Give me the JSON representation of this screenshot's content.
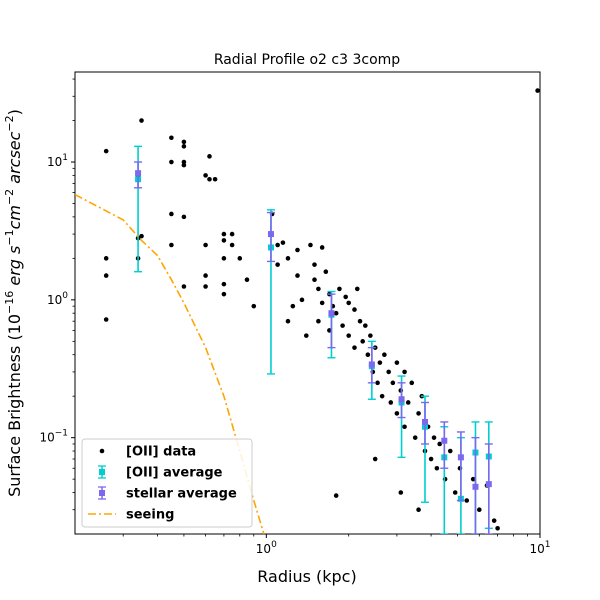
{
  "chart_data": {
    "type": "scatter",
    "title": "Radial Profile o2 c3 3comp",
    "xlabel": "Radius (kpc)",
    "ylabel_prefix": "Surface Brightness  (",
    "ylabel_unit_main": "10",
    "ylabel_unit_exp1": "−16",
    "ylabel_unit_mid": " erg s",
    "ylabel_unit_exp2": "−1",
    "ylabel_unit_cm": "cm",
    "ylabel_unit_exp3": "−2",
    "ylabel_unit_arc": " arcsec",
    "ylabel_unit_exp4": "−2",
    "ylabel_suffix": ")",
    "xscale": "log",
    "yscale": "log",
    "xlim": [
      0.2,
      10
    ],
    "ylim": [
      0.02,
      45
    ],
    "xticks": [
      {
        "value": 1,
        "base": "10",
        "exp": "0"
      },
      {
        "value": 10,
        "base": "10",
        "exp": "1"
      }
    ],
    "yticks": [
      {
        "value": 0.1,
        "base": "10",
        "exp": "−1"
      },
      {
        "value": 1,
        "base": "10",
        "exp": "0"
      },
      {
        "value": 10,
        "base": "10",
        "exp": "1"
      }
    ],
    "legend_position": "lower-left",
    "legend": [
      {
        "label": "[OII] data",
        "kind": "dot",
        "color": "#000000"
      },
      {
        "label": "[OII] average",
        "kind": "errbar",
        "color": "#00CED1"
      },
      {
        "label": "stellar average",
        "kind": "errbar",
        "color": "#7B68EE"
      },
      {
        "label": "seeing",
        "kind": "dashdot",
        "color": "#FFA500"
      }
    ],
    "series": [
      {
        "name": "[OII] data",
        "kind": "scatter",
        "color": "#000000",
        "points": [
          [
            0.26,
            12
          ],
          [
            0.26,
            2.0
          ],
          [
            0.26,
            1.5
          ],
          [
            0.26,
            0.72
          ],
          [
            0.34,
            7.8
          ],
          [
            0.34,
            2.8
          ],
          [
            0.34,
            2.0
          ],
          [
            0.35,
            20
          ],
          [
            0.35,
            2.9
          ],
          [
            0.45,
            15
          ],
          [
            0.45,
            10
          ],
          [
            0.45,
            4.2
          ],
          [
            0.45,
            2.5
          ],
          [
            0.5,
            13
          ],
          [
            0.5,
            10
          ],
          [
            0.5,
            9.5
          ],
          [
            0.5,
            14
          ],
          [
            0.5,
            4
          ],
          [
            0.5,
            1.25
          ],
          [
            0.6,
            8
          ],
          [
            0.6,
            2.5
          ],
          [
            0.6,
            1.5
          ],
          [
            0.6,
            1.25
          ],
          [
            0.62,
            11
          ],
          [
            0.62,
            7.5
          ],
          [
            0.65,
            7.5
          ],
          [
            0.7,
            3.0
          ],
          [
            0.7,
            2.7
          ],
          [
            0.7,
            2.0
          ],
          [
            0.7,
            1.3
          ],
          [
            0.7,
            1.1
          ],
          [
            0.75,
            3.0
          ],
          [
            0.75,
            2.5
          ],
          [
            0.8,
            2.0
          ],
          [
            0.85,
            1.4
          ],
          [
            0.9,
            0.9
          ],
          [
            1.05,
            4.2
          ],
          [
            1.1,
            2.5
          ],
          [
            1.1,
            1.8
          ],
          [
            1.15,
            2.6
          ],
          [
            1.2,
            2.0
          ],
          [
            1.2,
            0.7
          ],
          [
            1.25,
            0.9
          ],
          [
            1.3,
            2.3
          ],
          [
            1.3,
            1.5
          ],
          [
            1.35,
            1.0
          ],
          [
            1.4,
            0.55
          ],
          [
            1.45,
            2.5
          ],
          [
            1.5,
            1.8
          ],
          [
            1.5,
            1.4
          ],
          [
            1.55,
            1.2
          ],
          [
            1.55,
            0.7
          ],
          [
            1.6,
            2.4
          ],
          [
            1.6,
            0.95
          ],
          [
            1.65,
            1.6
          ],
          [
            1.7,
            1.1
          ],
          [
            1.7,
            0.6
          ],
          [
            1.75,
            0.9
          ],
          [
            1.8,
            0.8
          ],
          [
            1.85,
            1.2
          ],
          [
            1.9,
            0.65
          ],
          [
            1.95,
            1.05
          ],
          [
            2.0,
            0.95
          ],
          [
            2.0,
            0.55
          ],
          [
            2.1,
            0.85
          ],
          [
            2.1,
            0.45
          ],
          [
            2.15,
            1.2
          ],
          [
            2.2,
            0.7
          ],
          [
            2.25,
            0.5
          ],
          [
            2.3,
            0.65
          ],
          [
            2.35,
            0.4
          ],
          [
            2.4,
            0.55
          ],
          [
            2.45,
            0.3
          ],
          [
            2.5,
            0.45
          ],
          [
            2.55,
            0.25
          ],
          [
            2.6,
            0.35
          ],
          [
            2.65,
            0.2
          ],
          [
            2.7,
            0.4
          ],
          [
            2.8,
            0.3
          ],
          [
            2.85,
            0.18
          ],
          [
            2.9,
            0.25
          ],
          [
            3.0,
            0.35
          ],
          [
            3.0,
            0.15
          ],
          [
            3.1,
            0.22
          ],
          [
            3.2,
            0.3
          ],
          [
            3.2,
            0.12
          ],
          [
            3.3,
            0.18
          ],
          [
            3.4,
            0.25
          ],
          [
            3.5,
            0.1
          ],
          [
            3.6,
            0.15
          ],
          [
            3.7,
            0.2
          ],
          [
            3.8,
            0.08
          ],
          [
            3.9,
            0.12
          ],
          [
            4.0,
            0.07
          ],
          [
            4.1,
            0.1
          ],
          [
            4.2,
            0.06
          ],
          [
            4.3,
            0.09
          ],
          [
            4.5,
            0.05
          ],
          [
            4.7,
            0.08
          ],
          [
            4.9,
            0.04
          ],
          [
            5.1,
            0.06
          ],
          [
            5.4,
            0.035
          ],
          [
            5.7,
            0.05
          ],
          [
            6.0,
            0.03
          ],
          [
            6.4,
            0.045
          ],
          [
            6.8,
            0.025
          ],
          [
            7.0,
            0.022
          ],
          [
            1.8,
            0.038
          ],
          [
            2.5,
            0.07
          ],
          [
            3.1,
            0.04
          ],
          [
            3.6,
            0.03
          ],
          [
            9.8,
            33
          ]
        ]
      },
      {
        "name": "[OII] average",
        "kind": "errorbar",
        "color": "#00CED1",
        "points": [
          {
            "x": 0.34,
            "y": 7.5,
            "lo": 1.6,
            "hi": 13
          },
          {
            "x": 1.04,
            "y": 2.4,
            "lo": 0.29,
            "hi": 4.5
          },
          {
            "x": 1.73,
            "y": 0.78,
            "lo": 0.38,
            "hi": 1.15
          },
          {
            "x": 2.43,
            "y": 0.33,
            "lo": 0.19,
            "hi": 0.5
          },
          {
            "x": 3.12,
            "y": 0.18,
            "lo": 0.072,
            "hi": 0.28
          },
          {
            "x": 3.8,
            "y": 0.12,
            "lo": 0.034,
            "hi": 0.2
          },
          {
            "x": 4.47,
            "y": 0.072,
            "lo": 0.02,
            "hi": 0.12
          },
          {
            "x": 5.14,
            "y": 0.036,
            "lo": 0.02,
            "hi": 0.1
          },
          {
            "x": 5.81,
            "y": 0.078,
            "lo": 0.02,
            "hi": 0.13
          },
          {
            "x": 6.5,
            "y": 0.073,
            "lo": 0.022,
            "hi": 0.13
          }
        ]
      },
      {
        "name": "stellar average",
        "kind": "errorbar",
        "color": "#7B68EE",
        "points": [
          {
            "x": 0.34,
            "y": 8.3,
            "lo": 6.5,
            "hi": 10
          },
          {
            "x": 1.04,
            "y": 3.0,
            "lo": 1.9,
            "hi": 4.3
          },
          {
            "x": 1.73,
            "y": 0.8,
            "lo": 0.45,
            "hi": 1.1
          },
          {
            "x": 2.43,
            "y": 0.34,
            "lo": 0.25,
            "hi": 0.45
          },
          {
            "x": 3.12,
            "y": 0.19,
            "lo": 0.14,
            "hi": 0.25
          },
          {
            "x": 3.8,
            "y": 0.13,
            "lo": 0.09,
            "hi": 0.18
          },
          {
            "x": 4.47,
            "y": 0.095,
            "lo": 0.06,
            "hi": 0.13
          },
          {
            "x": 5.14,
            "y": 0.072,
            "lo": 0.035,
            "hi": 0.11
          },
          {
            "x": 5.81,
            "y": 0.044,
            "lo": 0.02,
            "hi": 0.1
          },
          {
            "x": 6.5,
            "y": 0.046,
            "lo": 0.02,
            "hi": 0.09
          }
        ]
      },
      {
        "name": "seeing",
        "kind": "line",
        "color": "#FFA500",
        "points": [
          [
            0.2,
            5.8
          ],
          [
            0.25,
            4.6
          ],
          [
            0.3,
            3.8
          ],
          [
            0.35,
            2.7
          ],
          [
            0.4,
            2.1
          ],
          [
            0.45,
            1.4
          ],
          [
            0.5,
            0.95
          ],
          [
            0.6,
            0.45
          ],
          [
            0.7,
            0.2
          ],
          [
            0.8,
            0.08
          ],
          [
            0.9,
            0.035
          ],
          [
            0.98,
            0.02
          ]
        ]
      }
    ]
  }
}
